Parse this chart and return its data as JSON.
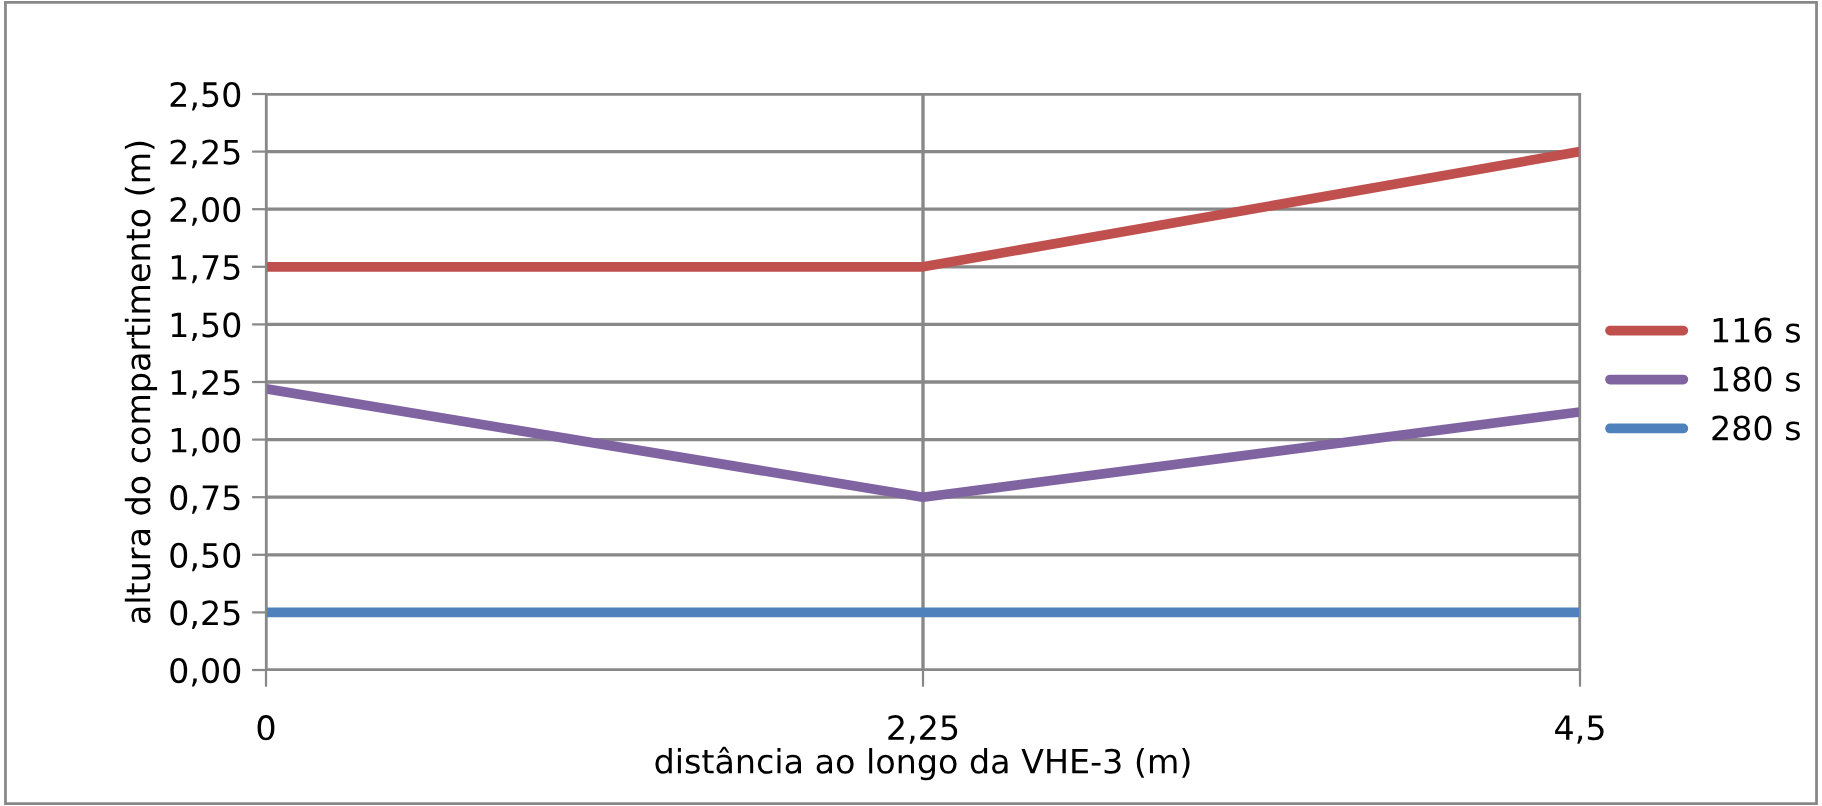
{
  "chart_data": {
    "type": "line",
    "xlabel": "distância ao longo da VHE-3 (m)",
    "ylabel": "altura do compartimento (m)",
    "categories": [
      "0",
      "2,25",
      "4,5"
    ],
    "series": [
      {
        "name": "116 s",
        "color": "#c0504d",
        "values": [
          1.75,
          1.75,
          2.25
        ]
      },
      {
        "name": "180 s",
        "color": "#8064a2",
        "values": [
          1.22,
          0.75,
          1.12
        ]
      },
      {
        "name": "280 s",
        "color": "#4f81bd",
        "values": [
          0.25,
          0.25,
          0.25
        ]
      }
    ],
    "ylim": [
      0,
      2.5
    ],
    "yticks": [
      {
        "value": 0,
        "label": "0,00"
      },
      {
        "value": 0.25,
        "label": "0,25"
      },
      {
        "value": 0.5,
        "label": "0,50"
      },
      {
        "value": 0.75,
        "label": "0,75"
      },
      {
        "value": 1.0,
        "label": "1,00"
      },
      {
        "value": 1.25,
        "label": "1,25"
      },
      {
        "value": 1.5,
        "label": "1,50"
      },
      {
        "value": 1.75,
        "label": "1,75"
      },
      {
        "value": 2.0,
        "label": "2,00"
      },
      {
        "value": 2.25,
        "label": "2,25"
      },
      {
        "value": 2.5,
        "label": "2,50"
      }
    ],
    "grid": true,
    "legend": "right",
    "marker": "none",
    "line_style": "solid"
  }
}
